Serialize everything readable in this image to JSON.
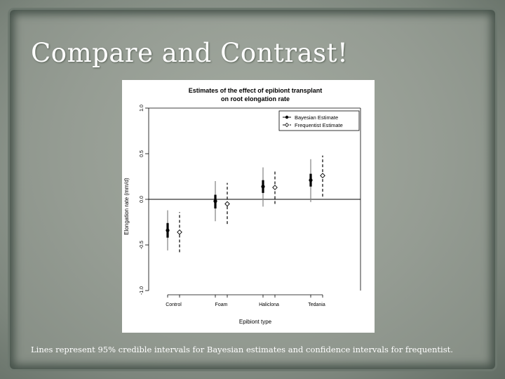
{
  "slide": {
    "title": "Compare and Contrast!",
    "caption": "Lines represent 95% credible intervals for Bayesian estimates and confidence intervals for frequentist."
  },
  "chart_data": {
    "type": "scatter",
    "title": "Estimates of the effect of epibiont transplant",
    "subtitle": "on root elongation rate",
    "xlabel": "Epibiont type",
    "ylabel": "Elongation rate (mm/d)",
    "categories": [
      "Control",
      "Foam",
      "Haliclona",
      "Tedania"
    ],
    "ylim": [
      -1.0,
      1.0
    ],
    "yticks": [
      -1.0,
      -0.5,
      0.0,
      0.5,
      1.0
    ],
    "ytick_labels": [
      "-1.0",
      "-0.5",
      "0.0",
      "0.5",
      "1.0"
    ],
    "reference_line": 0.0,
    "legend_position": "top-right",
    "grid": false,
    "series": [
      {
        "name": "Bayesian Estimate",
        "style": "solid-filled",
        "estimates": [
          -0.34,
          -0.02,
          0.14,
          0.21
        ],
        "inner_lower": [
          -0.42,
          -0.1,
          0.07,
          0.14
        ],
        "inner_upper": [
          -0.26,
          0.05,
          0.21,
          0.28
        ],
        "lower": [
          -0.56,
          -0.24,
          -0.08,
          -0.03
        ],
        "upper": [
          -0.12,
          0.2,
          0.35,
          0.44
        ]
      },
      {
        "name": "Frequentist Estimate",
        "style": "dashed-open",
        "estimates": [
          -0.36,
          -0.05,
          0.13,
          0.26
        ],
        "lower": [
          -0.58,
          -0.27,
          -0.05,
          0.03
        ],
        "upper": [
          -0.14,
          0.18,
          0.31,
          0.48
        ]
      }
    ]
  }
}
